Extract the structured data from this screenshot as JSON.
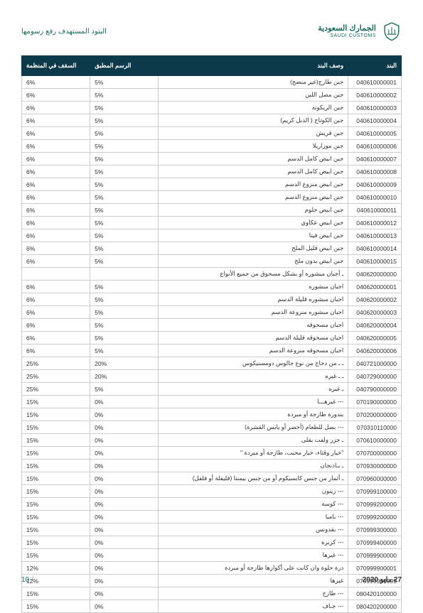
{
  "header": {
    "logo_ar": "الجمارك السعودية",
    "logo_en": "SAUDI CUSTOMS",
    "subtitle": "البنود المستهدف رفع رسومها"
  },
  "table": {
    "columns": [
      "البند",
      "وصف البند",
      "الرسم المطبق",
      "السقف في المنظمة"
    ],
    "rows": [
      [
        "040610000001",
        "جبن طازج(غير منضج)",
        "5%",
        "6%"
      ],
      [
        "040610000002",
        "جبن مصل اللبن",
        "5%",
        "6%"
      ],
      [
        "040610000003",
        "جبن الريكوته",
        "5%",
        "6%"
      ],
      [
        "040610000004",
        "جبن الكوتاج ( الدبل كريم)",
        "5%",
        "6%"
      ],
      [
        "040610000005",
        "جبن قريش",
        "5%",
        "6%"
      ],
      [
        "040610000006",
        "جبن موزاريلا",
        "5%",
        "6%"
      ],
      [
        "040610000007",
        "جبن ابيض كامل الدسم",
        "5%",
        "6%"
      ],
      [
        "040610000008",
        "جبن ابيض كامل الدسم",
        "5%",
        "6%"
      ],
      [
        "040610000009",
        "جبن ابيض منزوع الدسم",
        "5%",
        "6%"
      ],
      [
        "040610000010",
        "جبن ابيض منزوع الدسم",
        "5%",
        "6%"
      ],
      [
        "040610000011",
        "جبن ابيض حلوم",
        "5%",
        "6%"
      ],
      [
        "040610000012",
        "جبن ابيض عكاوي",
        "5%",
        "6%"
      ],
      [
        "040610000013",
        "جبن ابيض فيتا",
        "5%",
        "6%"
      ],
      [
        "040610000014",
        "جبن ابيض قليل الملح",
        "5%",
        "6%"
      ],
      [
        "040610000015",
        "جبن ابيض بدون ملح",
        "5%",
        "6%"
      ],
      [
        "040620000000",
        "ـ أجبان مبشورة أو بشكل مسحوق من جميع الأنواع",
        "",
        ""
      ],
      [
        "040620000001",
        "اجبان مبشوره",
        "5%",
        "6%"
      ],
      [
        "040620000002",
        "اجبان مبشوره قليلة الدسم",
        "5%",
        "6%"
      ],
      [
        "040620000003",
        "اجبان مبشوره منزوعة الدسم",
        "5%",
        "6%"
      ],
      [
        "040620000004",
        "اجبان مسحوقه",
        "5%",
        "6%"
      ],
      [
        "040620000005",
        "اجبان مسحوقه قليلة الدسم",
        "5%",
        "6%"
      ],
      [
        "040620000006",
        "اجبان مسحوقه منزوعة الدسم",
        "5%",
        "6%"
      ],
      [
        "040721000000",
        "ـ ـ من دجاج من نوع جالوس دومستيكوس",
        "20%",
        "25%"
      ],
      [
        "040729000000",
        "ـ ـ غيره",
        "20%",
        "25%"
      ],
      [
        "040790000000",
        "ـ غيره",
        "5%",
        "25%"
      ],
      [
        "070190000000",
        "--- غيرهـــا",
        "0%",
        "15%"
      ],
      [
        "070200000000",
        "بندورة طازجة أو مبردة",
        "0%",
        "15%"
      ],
      [
        "070310110000",
        "--- بصل للطعام (أخضر أو يابس القشرة)",
        "0%",
        "15%"
      ],
      [
        "070610000000",
        "ـ جزر ولفت بقلى",
        "0%",
        "15%"
      ],
      [
        "070700000000",
        "\"خيار وقثاء، خيار محبب، طازجة أو مبردة \"",
        "0%",
        "15%"
      ],
      [
        "070930000000",
        "ـ بـاذنجان",
        "0%",
        "15%"
      ],
      [
        "070960000000",
        "ـ أثمار من جنس كابسيكوم أو من جنس بيمنتا (فليفلة أو فلفل)",
        "0%",
        "15%"
      ],
      [
        "070999100000",
        "--- زيتون",
        "0%",
        "15%"
      ],
      [
        "070999200000",
        "--- كوسة",
        "0%",
        "15%"
      ],
      [
        "070999200000",
        "--- باميا",
        "0%",
        "15%"
      ],
      [
        "070999300000",
        "--- بقدونس",
        "0%",
        "15%"
      ],
      [
        "070999400000",
        "--- كزبرة",
        "0%",
        "15%"
      ],
      [
        "070999900000",
        "--- غيرها",
        "0%",
        "15%"
      ],
      [
        "070999900001",
        "ذرة حلوة وان كانت على أكوازها طازجة أو مبردة",
        "0%",
        "12%"
      ],
      [
        "070999909999",
        "غيرها",
        "0%",
        "12%"
      ],
      [
        "080420100000",
        "--- طازج",
        "0%",
        "15%"
      ],
      [
        "080420200000",
        "--- جـاف",
        "0%",
        "15%"
      ]
    ]
  },
  "footer": {
    "date": "27 مايو 2020",
    "page": "10",
    "slash": "/"
  },
  "colors": {
    "header_bg": "#0c3a4a",
    "brand": "#1a6b5e",
    "border": "#cccccc"
  }
}
